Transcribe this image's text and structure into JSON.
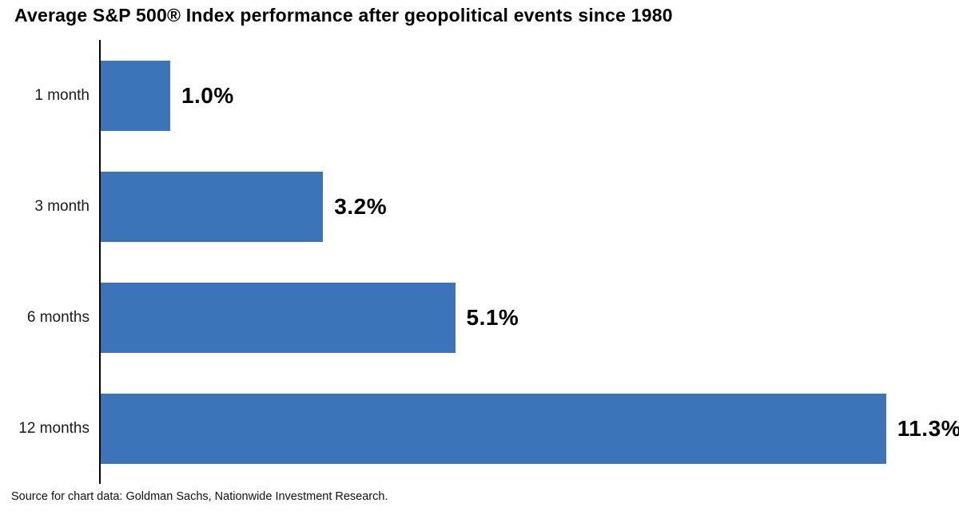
{
  "title": "Average S&P 500® Index performance after geopolitical events since 1980",
  "source_note": "Source for chart data: Goldman Sachs, Nationwide Investment Research.",
  "colors": {
    "bar": "#3b74b8",
    "axis": "#000000",
    "title_text": "#000000",
    "value_text": "#000000",
    "category_text": "#1a1a1a"
  },
  "chart_data": {
    "type": "bar",
    "orientation": "horizontal",
    "title": "Average S&P 500® Index performance after geopolitical events since 1980",
    "categories": [
      "1 month",
      "3 month",
      "6 months",
      "12 months"
    ],
    "values": [
      1.0,
      3.2,
      5.1,
      11.3
    ],
    "value_labels": [
      "1.0%",
      "3.2%",
      "5.1%",
      "11.3%"
    ],
    "xlabel": "",
    "ylabel": "",
    "xlim": [
      0,
      12.35
    ],
    "grid": false,
    "legend": false,
    "source": "Source for chart data: Goldman Sachs, Nationwide Investment Research."
  }
}
